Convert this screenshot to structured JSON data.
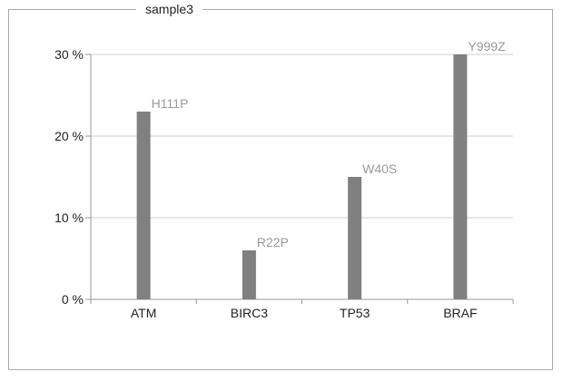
{
  "chart_data": {
    "type": "bar",
    "title": "sample3",
    "categories": [
      "ATM",
      "BIRC3",
      "TP53",
      "BRAF"
    ],
    "values": [
      23,
      6,
      15,
      30
    ],
    "data_labels": [
      "H111P",
      "R22P",
      "W40S",
      "Y999Z"
    ],
    "ylim": [
      0,
      30
    ],
    "yticks": [
      0,
      10,
      20,
      30
    ],
    "ytick_labels": [
      "0 %",
      "10 %",
      "20 %",
      "30 %"
    ],
    "xlabel": "",
    "ylabel": "",
    "grid": true,
    "bar_color": "#808080",
    "label_color": "#999999"
  }
}
